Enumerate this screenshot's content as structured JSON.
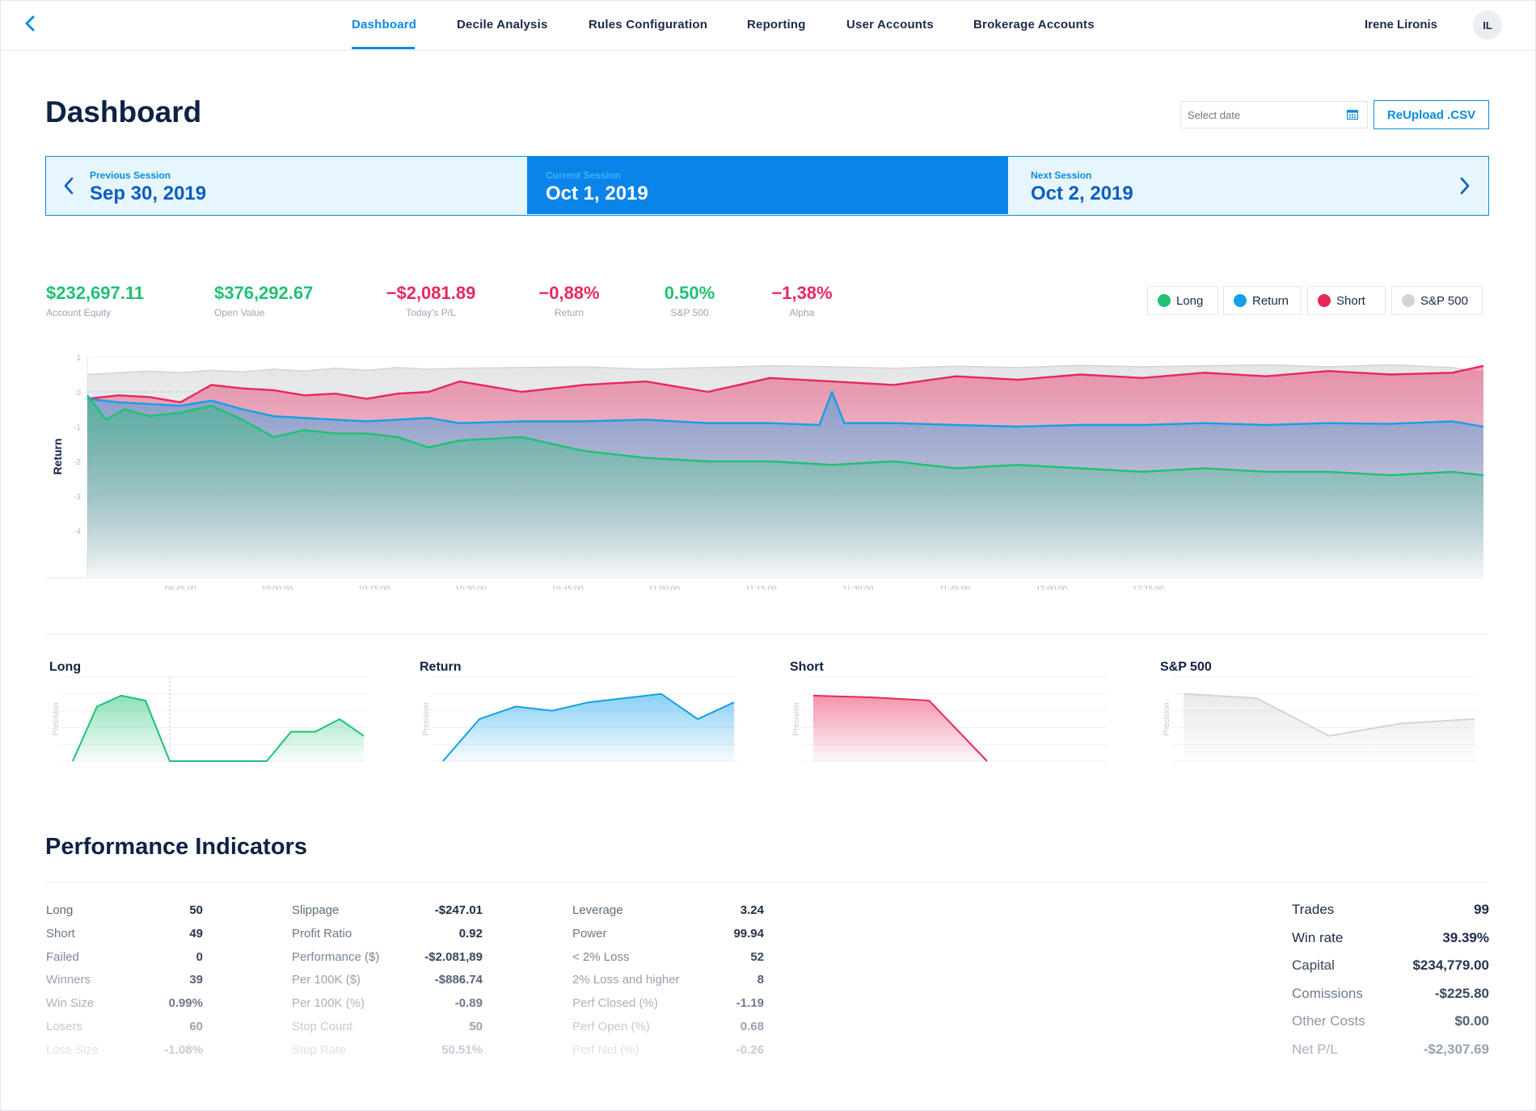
{
  "nav": {
    "items": [
      "Dashboard",
      "Decile Analysis",
      "Rules Configuration",
      "Reporting",
      "User Accounts",
      "Brokerage Accounts"
    ],
    "active": "Dashboard",
    "user_name": "Irene Lironis",
    "user_initials": "IL"
  },
  "header": {
    "title": "Dashboard",
    "date_placeholder": "Select date",
    "reupload_label": "ReUpload .CSV"
  },
  "session": {
    "previous_caption": "Previous Session",
    "previous_date": "Sep 30, 2019",
    "current_caption": "Current Session",
    "current_date": "Oct 1, 2019",
    "next_caption": "Next Session",
    "next_date": "Oct 2, 2019"
  },
  "metrics": [
    {
      "value": "$232,697.11",
      "label": "Account Equity",
      "color": "#1ec272"
    },
    {
      "value": "$376,292.67",
      "label": "Open Value",
      "color": "#1ec272"
    },
    {
      "value": "−$2,081.89",
      "label": "Today's P/L",
      "color": "#e8285d"
    },
    {
      "value": "−0,88%",
      "label": "Return",
      "color": "#e8285d"
    },
    {
      "value": "0.50%",
      "label": "S&P 500",
      "color": "#1ec272"
    },
    {
      "value": "−1,38%",
      "label": "Alpha",
      "color": "#e8285d"
    }
  ],
  "legend": [
    {
      "label": "Long",
      "color": "#1ec272"
    },
    {
      "label": "Return",
      "color": "#14a0e8"
    },
    {
      "label": "Short",
      "color": "#e8285d"
    },
    {
      "label": "S&P 500",
      "color": "#d2d4d7"
    }
  ],
  "chart_data": [
    {
      "type": "area",
      "ylabel": "Return",
      "ylim": [
        -5,
        1
      ],
      "yticks": [
        "1",
        "0",
        "-1",
        "-2",
        "-3",
        "-4"
      ],
      "xticks": [
        "09:45:00",
        "10:00:00",
        "10:15:00",
        "10:30:00",
        "10:45:00",
        "11:00:00",
        "11:15:00",
        "11:30:00",
        "11:45:00",
        "12:00:00",
        "12:15:00"
      ],
      "xrange_minutes": [
        0,
        225
      ],
      "grid": true,
      "legend": "top-right",
      "series": [
        {
          "name": "S&P 500",
          "color": "#d2d4d7",
          "x": [
            0,
            5,
            10,
            15,
            20,
            25,
            30,
            35,
            40,
            45,
            50,
            55,
            60,
            70,
            80,
            90,
            100,
            110,
            120,
            130,
            140,
            150,
            160,
            170,
            180,
            190,
            200,
            210,
            220,
            225
          ],
          "values": [
            0.5,
            0.55,
            0.6,
            0.55,
            0.62,
            0.58,
            0.65,
            0.6,
            0.68,
            0.62,
            0.7,
            0.65,
            0.68,
            0.7,
            0.72,
            0.65,
            0.7,
            0.75,
            0.72,
            0.68,
            0.74,
            0.7,
            0.76,
            0.72,
            0.75,
            0.78,
            0.72,
            0.78,
            0.7,
            0.55
          ]
        },
        {
          "name": "Short",
          "color": "#e8285d",
          "x": [
            0,
            5,
            10,
            15,
            20,
            25,
            30,
            35,
            40,
            45,
            50,
            55,
            60,
            70,
            80,
            90,
            100,
            110,
            120,
            130,
            140,
            150,
            160,
            170,
            180,
            190,
            200,
            210,
            220,
            225
          ],
          "values": [
            -0.2,
            -0.1,
            -0.15,
            -0.3,
            0.2,
            0.1,
            0.05,
            -0.1,
            -0.05,
            -0.2,
            -0.05,
            0.0,
            0.3,
            0.0,
            0.2,
            0.3,
            0.0,
            0.4,
            0.3,
            0.2,
            0.45,
            0.35,
            0.5,
            0.4,
            0.55,
            0.45,
            0.6,
            0.5,
            0.55,
            0.75
          ]
        },
        {
          "name": "Return",
          "color": "#14a0e8",
          "x": [
            0,
            5,
            10,
            15,
            20,
            25,
            30,
            35,
            40,
            45,
            50,
            55,
            60,
            70,
            80,
            90,
            100,
            110,
            118,
            120,
            122,
            124,
            130,
            140,
            150,
            160,
            170,
            180,
            190,
            200,
            210,
            220,
            225
          ],
          "values": [
            -0.2,
            -0.3,
            -0.35,
            -0.4,
            -0.25,
            -0.5,
            -0.7,
            -0.75,
            -0.8,
            -0.85,
            -0.8,
            -0.75,
            -0.9,
            -0.85,
            -0.85,
            -0.8,
            -0.9,
            -0.9,
            -0.95,
            0.0,
            -0.9,
            -0.9,
            -0.9,
            -0.95,
            -1.0,
            -0.95,
            -0.95,
            -0.9,
            -0.95,
            -0.9,
            -0.92,
            -0.85,
            -1.0
          ]
        },
        {
          "name": "Long",
          "color": "#1ec272",
          "x": [
            0,
            3,
            6,
            10,
            15,
            20,
            25,
            30,
            35,
            40,
            45,
            50,
            55,
            60,
            70,
            80,
            90,
            100,
            110,
            120,
            130,
            140,
            150,
            160,
            170,
            180,
            190,
            200,
            210,
            220,
            225
          ],
          "values": [
            -0.1,
            -0.8,
            -0.5,
            -0.7,
            -0.6,
            -0.4,
            -0.8,
            -1.3,
            -1.1,
            -1.2,
            -1.2,
            -1.3,
            -1.6,
            -1.4,
            -1.3,
            -1.7,
            -1.9,
            -2.0,
            -2.0,
            -2.1,
            -2.0,
            -2.2,
            -2.1,
            -2.2,
            -2.3,
            -2.2,
            -2.3,
            -2.3,
            -2.4,
            -2.3,
            -2.4
          ]
        }
      ]
    },
    {
      "type": "line",
      "title": "Long",
      "ylabel": "Precision",
      "ylim": [
        0,
        10
      ],
      "color": "#1ec272",
      "x": [
        0,
        1,
        2,
        3,
        4,
        5,
        6,
        7,
        8,
        9,
        10,
        11,
        12
      ],
      "values": [
        0,
        6.5,
        7.8,
        7.2,
        0,
        0,
        0,
        0,
        0,
        3.5,
        3.5,
        5,
        3
      ]
    },
    {
      "type": "line",
      "title": "Return",
      "ylabel": "Precision",
      "ylim": [
        0,
        10
      ],
      "color": "#14a0e8",
      "x": [
        0,
        1,
        2,
        3,
        4,
        5,
        6,
        7,
        8
      ],
      "values": [
        0,
        5,
        6.5,
        6,
        7,
        7.5,
        8,
        5,
        7
      ]
    },
    {
      "type": "line",
      "title": "Short",
      "ylabel": "Precision",
      "ylim": [
        0,
        10
      ],
      "color": "#e8285d",
      "x": [
        0,
        1,
        2,
        3
      ],
      "values": [
        7.8,
        7.6,
        7.2,
        0
      ]
    },
    {
      "type": "line",
      "title": "S&P 500",
      "ylabel": "Precision",
      "ylim": [
        0,
        10
      ],
      "color": "#d2d4d7",
      "x": [
        0,
        1,
        2,
        3,
        4
      ],
      "values": [
        8,
        7.5,
        3,
        4.5,
        5
      ]
    }
  ],
  "performance": {
    "title": "Performance Indicators",
    "col1": [
      {
        "label": "Long",
        "value": "50"
      },
      {
        "label": "Short",
        "value": "49"
      },
      {
        "label": "Failed",
        "value": "0"
      },
      {
        "label": "Winners",
        "value": "39"
      },
      {
        "label": "Win Size",
        "value": "0.99%"
      },
      {
        "label": "Losers",
        "value": "60"
      },
      {
        "label": "Loss Size",
        "value": "-1.08%"
      }
    ],
    "col2": [
      {
        "label": "Slippage",
        "value": "-$247.01"
      },
      {
        "label": "Profit Ratio",
        "value": "0.92"
      },
      {
        "label": "Performance ($)",
        "value": "-$2.081,89"
      },
      {
        "label": "Per 100K ($)",
        "value": "-$886.74"
      },
      {
        "label": "Per 100K (%)",
        "value": "-0.89"
      },
      {
        "label": "Stop Count",
        "value": "50"
      },
      {
        "label": "Stop Rate",
        "value": "50.51%"
      }
    ],
    "col3": [
      {
        "label": "Leverage",
        "value": "3.24"
      },
      {
        "label": "Power",
        "value": "99.94"
      },
      {
        "label": "< 2% Loss",
        "value": "52"
      },
      {
        "label": "2% Loss and higher",
        "value": "8"
      },
      {
        "label": "Perf Closed (%)",
        "value": "-1.19"
      },
      {
        "label": "Perf Open (%)",
        "value": "0.68"
      },
      {
        "label": "Perf Net (%)",
        "value": "-0.26"
      }
    ],
    "summary": [
      {
        "label": "Trades",
        "value": "99"
      },
      {
        "label": "Win rate",
        "value": "39.39%"
      },
      {
        "label": "Capital",
        "value": "$234,779.00"
      },
      {
        "label": "Comissions",
        "value": "-$225.80"
      },
      {
        "label": "Other Costs",
        "value": "$0.00"
      },
      {
        "label": "Net P/L",
        "value": "-$2,307.69"
      }
    ]
  }
}
